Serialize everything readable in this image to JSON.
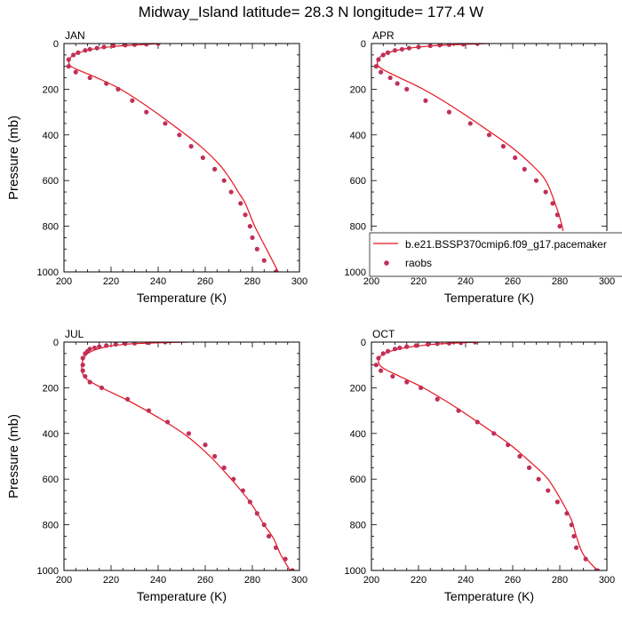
{
  "title": "Midway_Island  latitude= 28.3 N longitude= 177.4 W",
  "colors": {
    "model_line": "#e8141e",
    "obs_marker": "#c03058",
    "axis": "#000000"
  },
  "legend": {
    "model_label": "b.e21.BSSP370cmip6.f09_g17.pacemaker",
    "obs_label": "raobs",
    "panel": "APR",
    "placement": "lower-right of APR panel, clipped at figure edge"
  },
  "chart_data": [
    {
      "type": "line",
      "panel": "JAN",
      "xlabel": "Temperature (K)",
      "ylabel": "Pressure (mb)",
      "xlim": [
        200,
        300
      ],
      "ylim": [
        1000,
        0
      ],
      "y_inverted": true,
      "xticks": [
        "200",
        "220",
        "240",
        "260",
        "280",
        "300"
      ],
      "yticks": [
        "0",
        "200",
        "400",
        "600",
        "800",
        "1000"
      ],
      "series": [
        {
          "name": "b.e21.BSSP370cmip6.f09_g17.pacemaker",
          "kind": "line",
          "x": [
            241,
            233,
            222,
            212,
            205,
            202.5,
            202,
            203,
            207,
            214,
            224,
            236,
            248,
            258,
            266,
            271,
            274,
            277,
            281,
            286,
            291
          ],
          "y": [
            0,
            5,
            12,
            25,
            45,
            65,
            80,
            100,
            120,
            150,
            200,
            280,
            370,
            450,
            530,
            600,
            650,
            700,
            800,
            900,
            1000
          ]
        },
        {
          "name": "raobs",
          "kind": "scatter",
          "x": [
            240,
            235,
            230,
            226,
            221,
            217,
            214,
            211,
            209,
            206,
            204,
            202,
            202,
            205,
            211,
            218,
            223,
            229,
            235,
            243,
            249,
            254,
            259,
            264,
            268,
            271,
            275,
            277,
            279,
            280,
            282,
            285,
            290
          ],
          "y": [
            0,
            3,
            5,
            7,
            10,
            15,
            20,
            25,
            30,
            40,
            50,
            70,
            100,
            125,
            150,
            175,
            200,
            250,
            300,
            350,
            400,
            450,
            500,
            550,
            600,
            650,
            700,
            750,
            800,
            850,
            900,
            950,
            1000
          ]
        }
      ]
    },
    {
      "type": "line",
      "panel": "APR",
      "xlabel": "Temperature (K)",
      "ylabel": "",
      "xlim": [
        200,
        300
      ],
      "ylim": [
        1000,
        0
      ],
      "y_inverted": true,
      "xticks": [
        "200",
        "220",
        "240",
        "260",
        "280",
        "300"
      ],
      "yticks": [
        "0",
        "200",
        "400",
        "600",
        "800",
        "1000"
      ],
      "series": [
        {
          "name": "b.e21.BSSP370cmip6.f09_g17.pacemaker",
          "kind": "line",
          "x": [
            250,
            238,
            226,
            215,
            207,
            203.5,
            202.5,
            203,
            206,
            212,
            222,
            235,
            248,
            259,
            268,
            274,
            278,
            281,
            282,
            284,
            292
          ],
          "y": [
            0,
            4,
            10,
            22,
            40,
            60,
            80,
            100,
            120,
            150,
            200,
            280,
            370,
            450,
            530,
            600,
            700,
            800,
            870,
            930,
            1000
          ]
        },
        {
          "name": "raobs",
          "kind": "scatter",
          "x": [
            245,
            239,
            233,
            229,
            225,
            220,
            216,
            213,
            210,
            207,
            205,
            203,
            202,
            204,
            208,
            211,
            215,
            223,
            233,
            242,
            250,
            256,
            261,
            265,
            270,
            274,
            277,
            279,
            280,
            281,
            282,
            285,
            291
          ],
          "y": [
            0,
            3,
            5,
            7,
            10,
            15,
            20,
            25,
            30,
            40,
            50,
            70,
            100,
            125,
            150,
            175,
            200,
            250,
            300,
            350,
            400,
            450,
            500,
            550,
            600,
            650,
            700,
            750,
            800,
            850,
            900,
            950,
            1000
          ]
        }
      ]
    },
    {
      "type": "line",
      "panel": "JUL",
      "xlabel": "Temperature (K)",
      "ylabel": "Pressure (mb)",
      "xlim": [
        200,
        300
      ],
      "ylim": [
        1000,
        0
      ],
      "y_inverted": true,
      "xticks": [
        "200",
        "220",
        "240",
        "260",
        "280",
        "300"
      ],
      "yticks": [
        "0",
        "200",
        "400",
        "600",
        "800",
        "1000"
      ],
      "series": [
        {
          "name": "b.e21.BSSP370cmip6.f09_g17.pacemaker",
          "kind": "line",
          "x": [
            253,
            240,
            228,
            219,
            213,
            209.5,
            208,
            207.5,
            208,
            210,
            216,
            228,
            240,
            252,
            262,
            271,
            279,
            285,
            289,
            292,
            296
          ],
          "y": [
            0,
            3,
            8,
            18,
            35,
            55,
            80,
            110,
            140,
            165,
            200,
            260,
            330,
            410,
            500,
            600,
            700,
            800,
            860,
            930,
            1000
          ]
        },
        {
          "name": "raobs",
          "kind": "scatter",
          "x": [
            243,
            236,
            230,
            226,
            222,
            218,
            215,
            213,
            211,
            210,
            209,
            208,
            208,
            208,
            209,
            211,
            216,
            227,
            236,
            244,
            253,
            260,
            264,
            268,
            272,
            276,
            279,
            282,
            285,
            287,
            290,
            294,
            297
          ],
          "y": [
            0,
            3,
            5,
            7,
            10,
            15,
            20,
            25,
            30,
            40,
            50,
            70,
            100,
            125,
            150,
            175,
            200,
            250,
            300,
            350,
            400,
            450,
            500,
            550,
            600,
            650,
            700,
            750,
            800,
            850,
            900,
            950,
            1000
          ]
        }
      ]
    },
    {
      "type": "line",
      "panel": "OCT",
      "xlabel": "Temperature (K)",
      "ylabel": "",
      "xlim": [
        200,
        300
      ],
      "ylim": [
        1000,
        0
      ],
      "y_inverted": true,
      "xticks": [
        "200",
        "220",
        "240",
        "260",
        "280",
        "300"
      ],
      "yticks": [
        "0",
        "200",
        "400",
        "600",
        "800",
        "1000"
      ],
      "series": [
        {
          "name": "b.e21.BSSP370cmip6.f09_g17.pacemaker",
          "kind": "line",
          "x": [
            246,
            236,
            226,
            216,
            208,
            204,
            203,
            203.5,
            206,
            212,
            222,
            235,
            248,
            259,
            268,
            275,
            281,
            285,
            287,
            290,
            296
          ],
          "y": [
            0,
            4,
            10,
            22,
            40,
            60,
            80,
            100,
            120,
            150,
            200,
            280,
            370,
            450,
            530,
            600,
            700,
            780,
            850,
            930,
            1000
          ]
        },
        {
          "name": "raobs",
          "kind": "scatter",
          "x": [
            244,
            238,
            233,
            228,
            224,
            219,
            215,
            212,
            210,
            207,
            205,
            203,
            202,
            204,
            209,
            215,
            221,
            228,
            237,
            245,
            252,
            258,
            263,
            267,
            271,
            275,
            279,
            283,
            285,
            286,
            287,
            291,
            296
          ],
          "y": [
            0,
            3,
            5,
            7,
            10,
            15,
            20,
            25,
            30,
            40,
            50,
            70,
            100,
            125,
            150,
            175,
            200,
            250,
            300,
            350,
            400,
            450,
            500,
            550,
            600,
            650,
            700,
            750,
            800,
            850,
            900,
            950,
            1000
          ]
        }
      ]
    }
  ]
}
